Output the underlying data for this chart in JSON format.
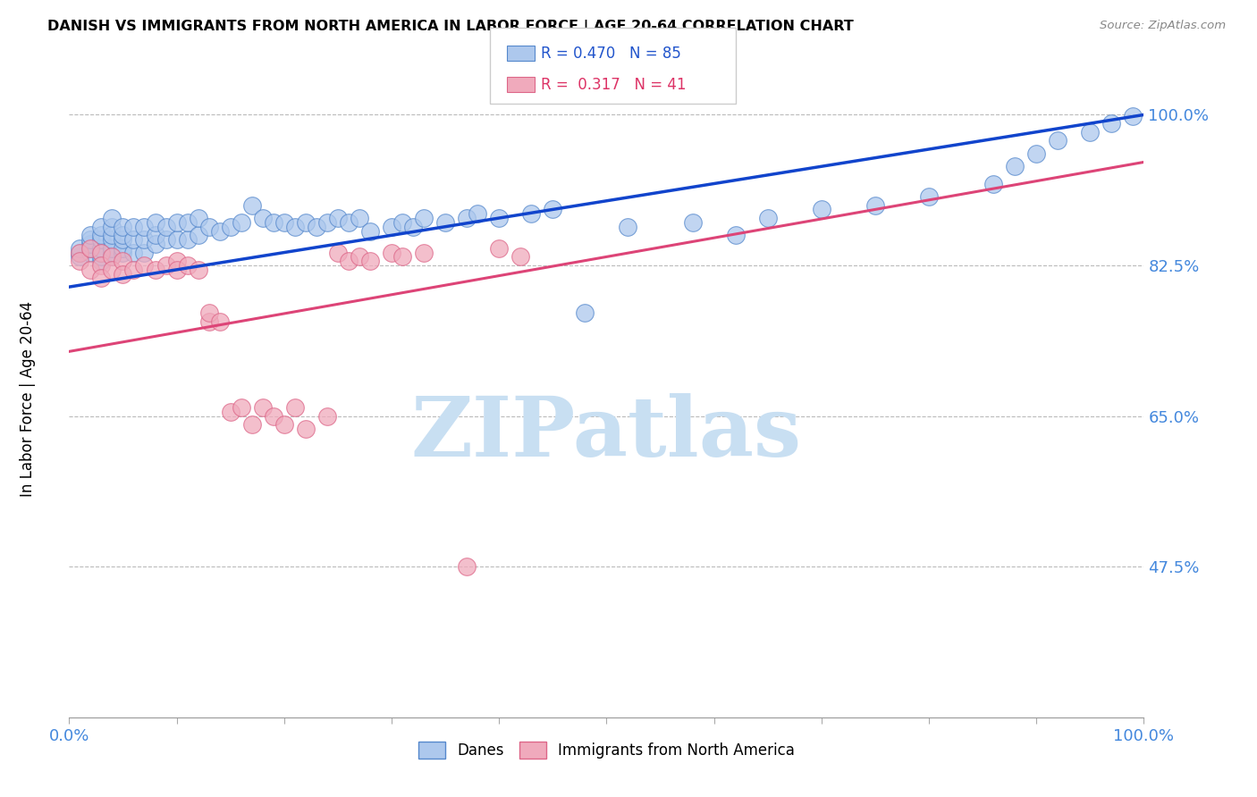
{
  "title": "DANISH VS IMMIGRANTS FROM NORTH AMERICA IN LABOR FORCE | AGE 20-64 CORRELATION CHART",
  "source": "Source: ZipAtlas.com",
  "ylabel": "In Labor Force | Age 20-64",
  "xlim": [
    0.0,
    1.0
  ],
  "ylim": [
    0.3,
    1.05
  ],
  "yticks": [
    0.475,
    0.65,
    0.825,
    1.0
  ],
  "ytick_labels": [
    "47.5%",
    "65.0%",
    "82.5%",
    "100.0%"
  ],
  "danes_color": "#adc8ed",
  "immigrants_color": "#f0aabc",
  "danes_edge_color": "#5588cc",
  "immigrants_edge_color": "#dd6688",
  "trend_danes_color": "#1144cc",
  "trend_immigrants_color": "#dd4477",
  "R_danes": 0.47,
  "N_danes": 85,
  "R_immigrants": 0.317,
  "N_immigrants": 41,
  "watermark": "ZIPatlas",
  "watermark_color": "#c8dff2",
  "danes_x": [
    0.01,
    0.01,
    0.01,
    0.02,
    0.02,
    0.02,
    0.02,
    0.02,
    0.03,
    0.03,
    0.03,
    0.03,
    0.03,
    0.03,
    0.03,
    0.04,
    0.04,
    0.04,
    0.04,
    0.04,
    0.04,
    0.04,
    0.05,
    0.05,
    0.05,
    0.05,
    0.05,
    0.06,
    0.06,
    0.06,
    0.07,
    0.07,
    0.07,
    0.08,
    0.08,
    0.08,
    0.09,
    0.09,
    0.1,
    0.1,
    0.11,
    0.11,
    0.12,
    0.12,
    0.13,
    0.14,
    0.15,
    0.16,
    0.17,
    0.18,
    0.19,
    0.2,
    0.21,
    0.22,
    0.23,
    0.24,
    0.25,
    0.26,
    0.27,
    0.28,
    0.3,
    0.31,
    0.32,
    0.33,
    0.35,
    0.37,
    0.38,
    0.4,
    0.43,
    0.45,
    0.48,
    0.52,
    0.58,
    0.62,
    0.65,
    0.7,
    0.75,
    0.8,
    0.86,
    0.88,
    0.9,
    0.92,
    0.95,
    0.97,
    0.99
  ],
  "danes_y": [
    0.835,
    0.84,
    0.845,
    0.84,
    0.845,
    0.85,
    0.855,
    0.86,
    0.83,
    0.835,
    0.84,
    0.845,
    0.855,
    0.86,
    0.87,
    0.835,
    0.84,
    0.845,
    0.855,
    0.86,
    0.87,
    0.88,
    0.84,
    0.845,
    0.855,
    0.86,
    0.87,
    0.84,
    0.855,
    0.87,
    0.84,
    0.855,
    0.87,
    0.85,
    0.86,
    0.875,
    0.855,
    0.87,
    0.855,
    0.875,
    0.855,
    0.875,
    0.86,
    0.88,
    0.87,
    0.865,
    0.87,
    0.875,
    0.895,
    0.88,
    0.875,
    0.875,
    0.87,
    0.875,
    0.87,
    0.875,
    0.88,
    0.875,
    0.88,
    0.865,
    0.87,
    0.875,
    0.87,
    0.88,
    0.875,
    0.88,
    0.885,
    0.88,
    0.885,
    0.89,
    0.77,
    0.87,
    0.875,
    0.86,
    0.88,
    0.89,
    0.895,
    0.905,
    0.92,
    0.94,
    0.955,
    0.97,
    0.98,
    0.99,
    0.998
  ],
  "immigrants_x": [
    0.01,
    0.01,
    0.02,
    0.02,
    0.03,
    0.03,
    0.03,
    0.04,
    0.04,
    0.05,
    0.05,
    0.06,
    0.07,
    0.08,
    0.09,
    0.1,
    0.1,
    0.11,
    0.12,
    0.13,
    0.13,
    0.14,
    0.15,
    0.16,
    0.17,
    0.18,
    0.19,
    0.2,
    0.21,
    0.22,
    0.24,
    0.25,
    0.26,
    0.27,
    0.28,
    0.3,
    0.31,
    0.33,
    0.37,
    0.4,
    0.42
  ],
  "immigrants_y": [
    0.84,
    0.83,
    0.845,
    0.82,
    0.84,
    0.825,
    0.81,
    0.835,
    0.82,
    0.83,
    0.815,
    0.82,
    0.825,
    0.82,
    0.825,
    0.83,
    0.82,
    0.825,
    0.82,
    0.76,
    0.77,
    0.76,
    0.655,
    0.66,
    0.64,
    0.66,
    0.65,
    0.64,
    0.66,
    0.635,
    0.65,
    0.84,
    0.83,
    0.835,
    0.83,
    0.84,
    0.835,
    0.84,
    0.475,
    0.845,
    0.835
  ]
}
